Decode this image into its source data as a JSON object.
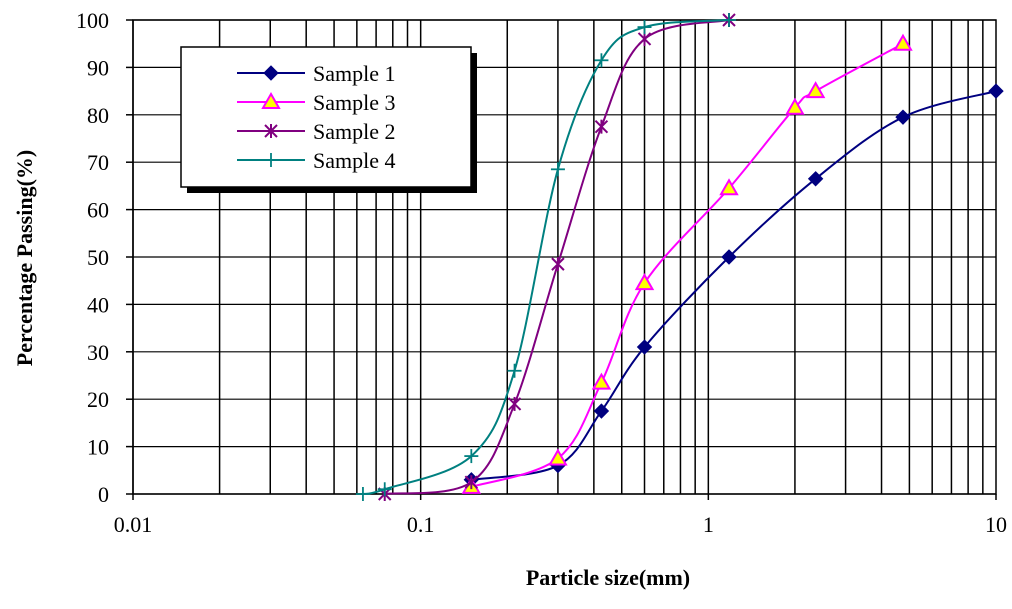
{
  "chart_data": {
    "type": "line",
    "xlabel": "Particle size(mm)",
    "ylabel": "Percentage Passing(%)",
    "x_scale": "log",
    "xlim": [
      0.01,
      10
    ],
    "ylim": [
      0,
      100
    ],
    "x_ticks": [
      0.01,
      0.1,
      1,
      10
    ],
    "x_tick_labels": [
      "0.01",
      "0.1",
      "1",
      "10"
    ],
    "y_ticks": [
      0,
      10,
      20,
      30,
      40,
      50,
      60,
      70,
      80,
      90,
      100
    ],
    "y_tick_labels": [
      "0",
      "10",
      "20",
      "30",
      "40",
      "50",
      "60",
      "70",
      "80",
      "90",
      "100"
    ],
    "grid": "vertical lines at each log decade subdivision, horizontal lines at each 10%",
    "legend_position": "top-left",
    "series": [
      {
        "name": "Sample 1",
        "color": "#000080",
        "marker": "diamond",
        "x": [
          0.15,
          0.3,
          0.425,
          0.6,
          1.18,
          2.36,
          4.75,
          10
        ],
        "y": [
          3,
          6,
          17.5,
          31,
          50,
          66.5,
          79.5,
          85
        ]
      },
      {
        "name": "Sample 3",
        "color": "#ff00ff",
        "marker": "triangle",
        "x": [
          0.15,
          0.3,
          0.425,
          0.6,
          1.18,
          2.0,
          2.36,
          4.75
        ],
        "y": [
          1.5,
          7.5,
          23.5,
          44.5,
          64.5,
          81.5,
          85,
          95
        ]
      },
      {
        "name": "Sample 2",
        "color": "#800080",
        "marker": "asterisk",
        "x": [
          0.075,
          0.15,
          0.212,
          0.3,
          0.425,
          0.6,
          1.18
        ],
        "y": [
          0,
          2.5,
          19,
          48.5,
          77.5,
          96,
          100
        ]
      },
      {
        "name": "Sample 4",
        "color": "#008080",
        "marker": "plus",
        "x": [
          0.063,
          0.075,
          0.15,
          0.212,
          0.3,
          0.425,
          0.6,
          1.18
        ],
        "y": [
          0,
          1,
          8,
          26,
          68.5,
          91.5,
          98.5,
          100
        ]
      }
    ]
  }
}
